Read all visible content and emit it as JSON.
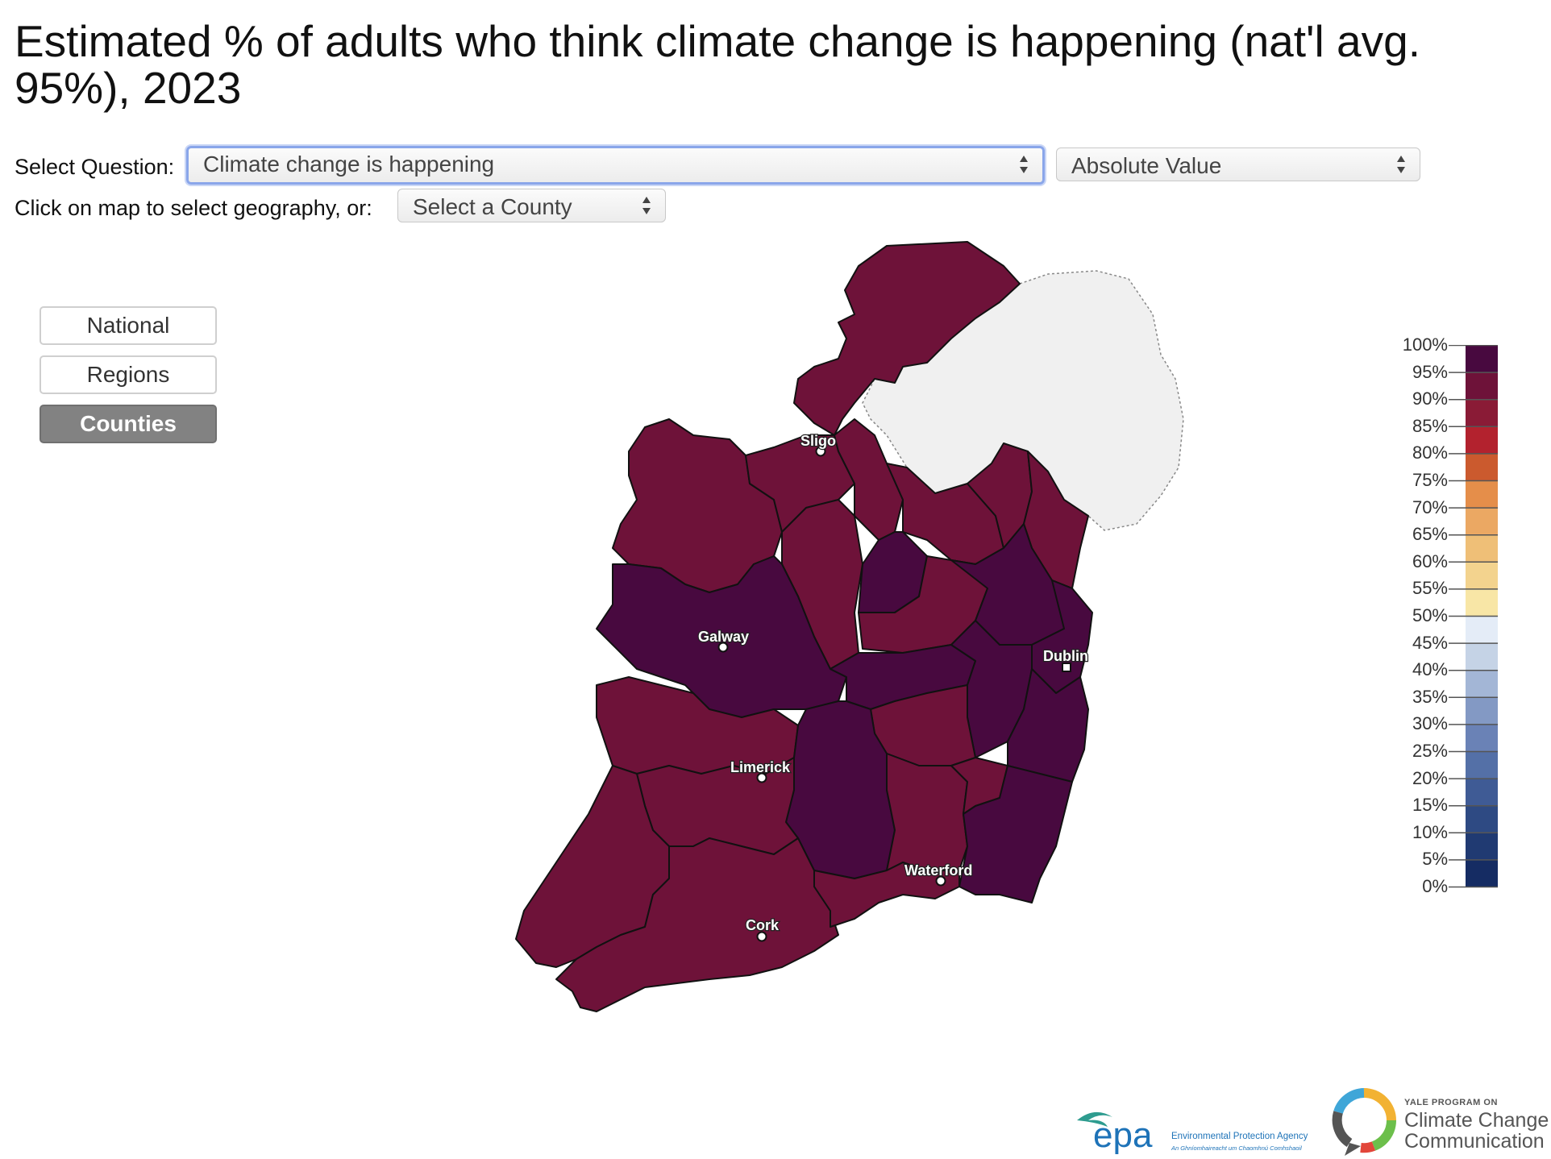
{
  "title": "Estimated % of adults who think climate change is happening (nat'l avg. 95%), 2023",
  "controls": {
    "question_label": "Select Question:",
    "question_value": "Climate change is happening",
    "measure_value": "Absolute Value",
    "geo_label": "Click on map to select geography, or:",
    "county_value": "Select a County"
  },
  "geography_buttons": [
    {
      "label": "National",
      "active": false
    },
    {
      "label": "Regions",
      "active": false
    },
    {
      "label": "Counties",
      "active": true
    }
  ],
  "cities": [
    "Sligo",
    "Galway",
    "Dublin",
    "Limerick",
    "Waterford",
    "Cork"
  ],
  "legend": {
    "labels": [
      "100%",
      "95%",
      "90%",
      "85%",
      "80%",
      "75%",
      "70%",
      "65%",
      "60%",
      "55%",
      "50%",
      "45%",
      "40%",
      "35%",
      "30%",
      "25%",
      "20%",
      "15%",
      "10%",
      "5%",
      "0%"
    ],
    "colors": [
      "#48093f",
      "#6e1239",
      "#8a1b36",
      "#b3222e",
      "#cb5a2e",
      "#e58e4a",
      "#eba863",
      "#efbf77",
      "#f3d38e",
      "#f8e6a6",
      "#e4ecf7",
      "#c5d3e6",
      "#a3b6d6",
      "#8399c4",
      "#6a82b6",
      "#5470a7",
      "#3f5b95",
      "#2e4a83",
      "#203a72",
      "#152c63"
    ]
  },
  "map_colors": {
    "very_high": "#48093f",
    "high": "#6e1239",
    "northern_ireland": "#f0f0f0"
  },
  "logos": {
    "epa_mark": "epa",
    "epa_name": "Environmental Protection Agency",
    "epa_irish": "An Ghníomhaireacht um Chaomhnú Comhshaoil",
    "yale_small": "YALE PROGRAM ON",
    "yale_line1": "Climate Change",
    "yale_line2": "Communication"
  }
}
